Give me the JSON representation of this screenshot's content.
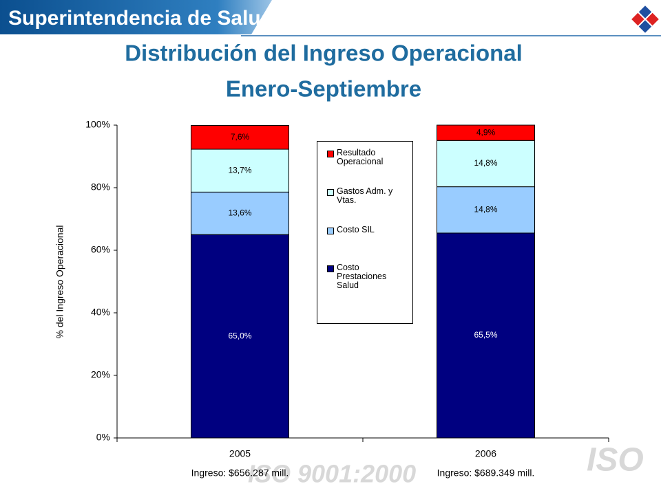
{
  "header": {
    "brand": "Superintendencia de Salud"
  },
  "watermark": {
    "text": "ISO 9001:2000",
    "logo": "ISO"
  },
  "chart_data": {
    "type": "stacked-bar",
    "title": "Distribución del Ingreso Operacional",
    "subtitle": "Enero-Septiembre",
    "y_label": "% del Ingreso Operacional",
    "categories": [
      "2005",
      "2006"
    ],
    "category_notes": [
      "Ingreso: $656.287 mill.",
      "Ingreso: $689.349 mill."
    ],
    "series": [
      {
        "name": "Costo Prestaciones Salud",
        "color": "#000080",
        "label_color": "#ffffff",
        "values": [
          65.0,
          65.5
        ],
        "value_labels": [
          "65,0%",
          "65,5%"
        ]
      },
      {
        "name": "Costo SIL",
        "color": "#99ccff",
        "label_color": "#000000",
        "values": [
          13.6,
          14.8
        ],
        "value_labels": [
          "13,6%",
          "14,8%"
        ]
      },
      {
        "name": "Gastos Adm. y Vtas.",
        "color": "#ccffff",
        "label_color": "#000000",
        "values": [
          13.7,
          14.8
        ],
        "value_labels": [
          "13,7%",
          "14,8%"
        ]
      },
      {
        "name": "Resultado Operacional",
        "color": "#ff0000",
        "label_color": "#000000",
        "values": [
          7.6,
          4.9
        ],
        "value_labels": [
          "7,6%",
          "4,9%"
        ]
      }
    ],
    "ylim": [
      0,
      100
    ],
    "yticks": [
      {
        "value": 0,
        "label": "0%"
      },
      {
        "value": 20,
        "label": "20%"
      },
      {
        "value": 40,
        "label": "40%"
      },
      {
        "value": 60,
        "label": "60%"
      },
      {
        "value": 80,
        "label": "80%"
      },
      {
        "value": 100,
        "label": "100%"
      }
    ]
  }
}
